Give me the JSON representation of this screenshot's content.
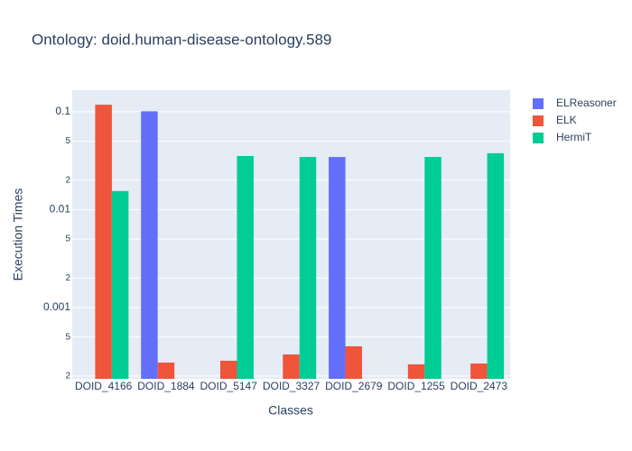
{
  "chart_data": {
    "type": "bar",
    "title": "Ontology: doid.human-disease-ontology.589",
    "x_label": "Classes",
    "y_label": "Execution Times",
    "categories": [
      "DOID_4166",
      "DOID_1884",
      "DOID_5147",
      "DOID_3327",
      "DOID_2679",
      "DOID_1255",
      "DOID_2473"
    ],
    "series": [
      {
        "name": "ELReasoner",
        "color": "#636efa",
        "values": [
          null,
          0.101,
          null,
          null,
          0.0345,
          null,
          null
        ]
      },
      {
        "name": "ELK",
        "color": "#ef553b",
        "values": [
          0.118,
          0.000274,
          0.000286,
          0.000332,
          0.000402,
          0.000263,
          0.000268
        ]
      },
      {
        "name": "HermiT",
        "color": "#00cc96",
        "values": [
          0.0155,
          null,
          0.0353,
          0.0345,
          null,
          0.0345,
          0.0377
        ]
      }
    ],
    "yscale": "log",
    "ylim": [
      0.000187,
      0.166
    ],
    "yticks": [
      {
        "value": 0.0002,
        "label": "2"
      },
      {
        "value": 0.0005,
        "label": "5"
      },
      0.001,
      {
        "value": 0.002,
        "label": "2"
      },
      {
        "value": 0.005,
        "label": "5"
      },
      0.01,
      {
        "value": 0.02,
        "label": "2"
      },
      {
        "value": 0.05,
        "label": "5"
      },
      0.1
    ],
    "grid": true,
    "legend_position": "top-right"
  }
}
